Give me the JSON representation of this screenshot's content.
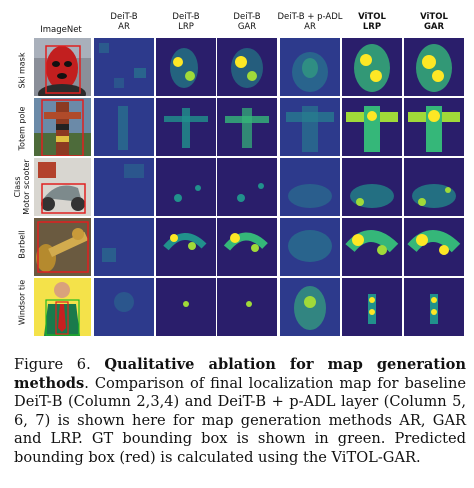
{
  "figure": {
    "columns": [
      {
        "label": "ImageNet",
        "bold": false
      },
      {
        "label": "DeiT-B\nAR",
        "bold": false
      },
      {
        "label": "DeiT-B\nLRP",
        "bold": false
      },
      {
        "label": "DeiT-B\nGAR",
        "bold": false
      },
      {
        "label": "DeiT-B + p-ADL\nAR",
        "bold": false
      },
      {
        "label": "ViTOL\nLRP",
        "bold": true
      },
      {
        "label": "ViTOL\nGAR",
        "bold": true
      }
    ],
    "rows": [
      {
        "label": "Ski mask"
      },
      {
        "label": "Totem pole"
      },
      {
        "label": "Class\nMotor scooter"
      },
      {
        "label": "Barbell"
      },
      {
        "label": "Windsor tie"
      }
    ],
    "colors": {
      "map_dark": "#2a1e6b",
      "map_mid": "#21918c",
      "map_bright": "#fde725",
      "gt_box": "#22bb22",
      "pred_box": "#e02020"
    }
  },
  "caption": {
    "figure_num": "Figure 6.",
    "title": "Qualitative ablation for map generation methods",
    "body": ". Comparison of final localization map for baseline DeiT-B (Column 2,3,4) and DeiT-B + p-ADL layer (Column 5, 6, 7) is shown here for map generation methods AR, GAR and LRP. GT bounding box is shown in green. Predicted bounding box (red) is calculated using the ViTOL-GAR."
  }
}
